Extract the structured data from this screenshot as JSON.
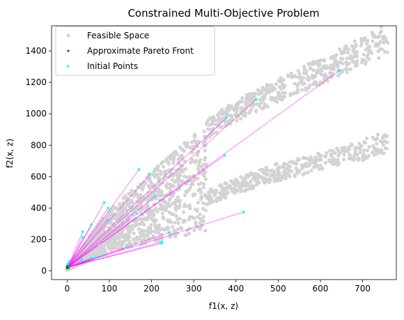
{
  "chart_data": {
    "type": "scatter",
    "title": "Constrained Multi-Objective Problem",
    "xlabel": "f1(x, z)",
    "ylabel": "f2(x, z)",
    "xlim": [
      -37,
      780
    ],
    "ylim": [
      -55,
      1560
    ],
    "xticks": [
      0,
      100,
      200,
      300,
      400,
      500,
      600,
      700
    ],
    "yticks": [
      0,
      200,
      400,
      600,
      800,
      1000,
      1200,
      1400
    ],
    "grid": false,
    "legend_position": "top-left",
    "series": [
      {
        "name": "Feasible Space",
        "color": "#d3d3d3",
        "marker": "circle",
        "description_of_shape": "two diverging bands from origin",
        "upper_band": {
          "x_range": [
            0,
            760
          ],
          "y_at_x": [
            [
              0,
              20
            ],
            [
              100,
              380
            ],
            [
              200,
              620
            ],
            [
              300,
              850
            ],
            [
              400,
              1020
            ],
            [
              500,
              1150
            ],
            [
              600,
              1270
            ],
            [
              700,
              1400
            ],
            [
              760,
              1480
            ]
          ]
        },
        "lower_band": {
          "x_range": [
            0,
            770
          ],
          "y_at_x": [
            [
              0,
              10
            ],
            [
              100,
              220
            ],
            [
              200,
              330
            ],
            [
              300,
              430
            ],
            [
              400,
              540
            ],
            [
              500,
              630
            ],
            [
              600,
              700
            ],
            [
              700,
              770
            ],
            [
              770,
              830
            ]
          ]
        }
      },
      {
        "name": "Approximate Pareto Front",
        "color": "#008000",
        "marker": "circle",
        "points": [
          [
            0,
            18
          ],
          [
            1,
            22
          ],
          [
            2,
            26
          ],
          [
            0,
            30
          ],
          [
            3,
            20
          ]
        ]
      },
      {
        "name": "Initial Points",
        "color": "#00ffff",
        "marker": "circle",
        "points": [
          [
            448,
            1090
          ],
          [
            645,
            1275
          ],
          [
            378,
            975
          ],
          [
            373,
            735
          ],
          [
            170,
            645
          ],
          [
            197,
            615
          ],
          [
            97,
            400
          ],
          [
            88,
            435
          ],
          [
            208,
            475
          ],
          [
            37,
            250
          ],
          [
            57,
            295
          ],
          [
            95,
            325
          ],
          [
            37,
            215
          ],
          [
            165,
            365
          ],
          [
            418,
            375
          ],
          [
            242,
            245
          ],
          [
            225,
            185
          ],
          [
            223,
            175
          ],
          [
            143,
            150
          ],
          [
            68,
            85
          ],
          [
            57,
            80
          ],
          [
            35,
            70
          ],
          [
            82,
            95
          ],
          [
            2,
            45
          ],
          [
            5,
            60
          ],
          [
            3,
            25
          ],
          [
            0,
            20
          ]
        ]
      }
    ],
    "connector_color": "#ff00ff"
  }
}
